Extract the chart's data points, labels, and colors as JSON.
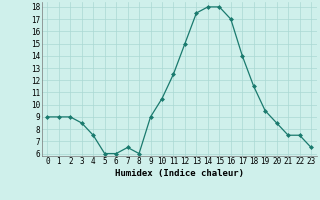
{
  "xlabel": "Humidex (Indice chaleur)",
  "x": [
    0,
    1,
    2,
    3,
    4,
    5,
    6,
    7,
    8,
    9,
    10,
    11,
    12,
    13,
    14,
    15,
    16,
    17,
    18,
    19,
    20,
    21,
    22,
    23
  ],
  "y": [
    9,
    9,
    9,
    8.5,
    7.5,
    6,
    6,
    6.5,
    6,
    9,
    10.5,
    12.5,
    15,
    17.5,
    18,
    18,
    17,
    14,
    11.5,
    9.5,
    8.5,
    7.5,
    7.5,
    6.5
  ],
  "ylim": [
    6,
    18
  ],
  "yticks": [
    6,
    7,
    8,
    9,
    10,
    11,
    12,
    13,
    14,
    15,
    16,
    17,
    18
  ],
  "xticks": [
    0,
    1,
    2,
    3,
    4,
    5,
    6,
    7,
    8,
    9,
    10,
    11,
    12,
    13,
    14,
    15,
    16,
    17,
    18,
    19,
    20,
    21,
    22,
    23
  ],
  "line_color": "#1a7a6e",
  "marker_color": "#1a7a6e",
  "bg_color": "#cff0eb",
  "grid_color": "#aad9d3",
  "tick_fontsize": 5.5,
  "label_fontsize": 6.5
}
